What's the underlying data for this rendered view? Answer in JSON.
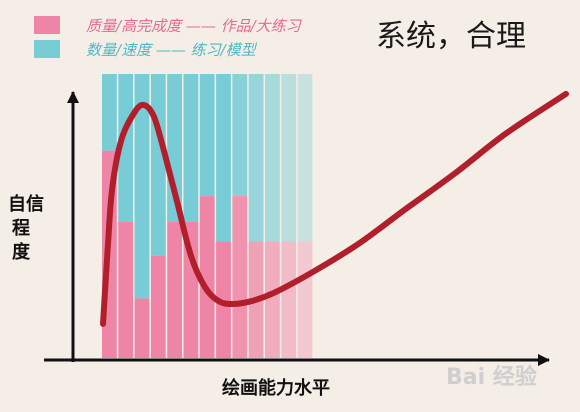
{
  "chart_data": {
    "type": "bar",
    "title": "系统，合理",
    "xlabel": "绘画能力水平",
    "ylabel": "自信程度",
    "legend": [
      {
        "swatch_color": "#ee85a7",
        "label": "质量",
        "pairs": "/高完成度 —— 作品/大练习"
      },
      {
        "swatch_color": "#78ccd5",
        "label": "数量",
        "pairs": "/速度 —— 练习/模型"
      }
    ],
    "colors": {
      "quality": "#ee85a7",
      "quantity": "#78ccd5",
      "curve": "#b21f2c"
    },
    "bars": [
      {
        "quality": 0.73,
        "quantity": 0.27
      },
      {
        "quality": 0.48,
        "quantity": 0.52
      },
      {
        "quality": 0.21,
        "quantity": 0.79
      },
      {
        "quality": 0.36,
        "quantity": 0.64
      },
      {
        "quality": 0.48,
        "quantity": 0.52
      },
      {
        "quality": 0.48,
        "quantity": 0.52
      },
      {
        "quality": 0.57,
        "quantity": 0.43
      },
      {
        "quality": 0.41,
        "quantity": 0.59
      },
      {
        "quality": 0.57,
        "quantity": 0.43
      },
      {
        "quality": 0.41,
        "quantity": 0.59
      },
      {
        "quality": 0.41,
        "quantity": 0.59
      },
      {
        "quality": 0.41,
        "quantity": 0.59
      },
      {
        "quality": 0.41,
        "quantity": 0.59
      }
    ],
    "curve": [
      [
        0.0,
        0.12
      ],
      [
        0.01,
        0.38
      ],
      [
        0.02,
        0.6
      ],
      [
        0.04,
        0.77
      ],
      [
        0.07,
        0.87
      ],
      [
        0.09,
        0.89
      ],
      [
        0.11,
        0.85
      ],
      [
        0.13,
        0.74
      ],
      [
        0.16,
        0.55
      ],
      [
        0.19,
        0.36
      ],
      [
        0.22,
        0.25
      ],
      [
        0.25,
        0.2
      ],
      [
        0.28,
        0.19
      ],
      [
        0.32,
        0.2
      ],
      [
        0.37,
        0.23
      ],
      [
        0.45,
        0.3
      ],
      [
        0.55,
        0.4
      ],
      [
        0.65,
        0.52
      ],
      [
        0.76,
        0.65
      ],
      [
        0.87,
        0.79
      ],
      [
        1.0,
        0.93
      ]
    ],
    "watermark": "Bai  经验"
  }
}
